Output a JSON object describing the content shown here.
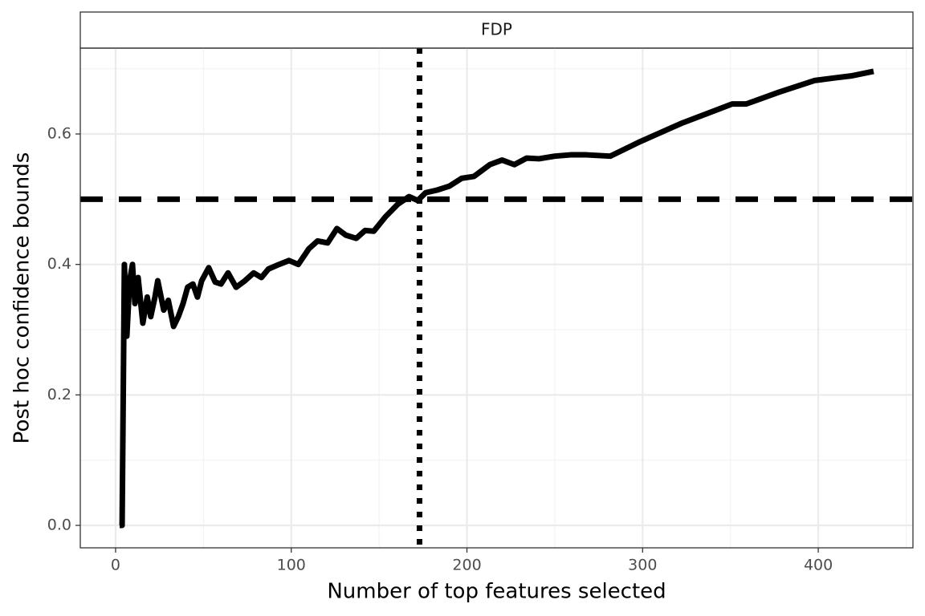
{
  "chart_data": {
    "type": "line",
    "facet_label": "FDP",
    "xlabel": "Number of top features selected",
    "ylabel": "Post hoc confidence bounds",
    "x": [
      2.3,
      3.7,
      5,
      6.4,
      8,
      9.6,
      11,
      12.8,
      15.5,
      18,
      20,
      22.4,
      24,
      27.4,
      30,
      33,
      35.7,
      38.4,
      41,
      44,
      46.6,
      49,
      53,
      56.7,
      60,
      64,
      68.6,
      73.6,
      78.6,
      83,
      87,
      93,
      98.7,
      104,
      110,
      115,
      120.7,
      126,
      131,
      137,
      142,
      147,
      153.6,
      160.5,
      167,
      172,
      176.5,
      183,
      190,
      197,
      204,
      213,
      220,
      227,
      234,
      241,
      250,
      259,
      268,
      281.6,
      297.6,
      322.7,
      351,
      359,
      377.6,
      398,
      409.6,
      418.7,
      431.5
    ],
    "series": [
      {
        "color": "#000000",
        "values": [
          0,
          0,
          0.4,
          0.29,
          0.375,
          0.4,
          0.34,
          0.38,
          0.31,
          0.35,
          0.32,
          0.35,
          0.375,
          0.33,
          0.345,
          0.305,
          0.32,
          0.34,
          0.365,
          0.37,
          0.35,
          0.375,
          0.395,
          0.373,
          0.37,
          0.387,
          0.365,
          0.375,
          0.387,
          0.38,
          0.393,
          0.4,
          0.406,
          0.4,
          0.424,
          0.436,
          0.433,
          0.455,
          0.445,
          0.44,
          0.452,
          0.451,
          0.473,
          0.492,
          0.504,
          0.498,
          0.51,
          0.514,
          0.52,
          0.532,
          0.535,
          0.553,
          0.56,
          0.553,
          0.563,
          0.562,
          0.566,
          0.568,
          0.568,
          0.566,
          0.587,
          0.617,
          0.646,
          0.646,
          0.664,
          0.682,
          0.686,
          0.689,
          0.696
        ]
      }
    ],
    "hlines": [
      {
        "value": 0.5,
        "linetype": "dashed"
      }
    ],
    "vlines": [
      {
        "value": 173,
        "linetype": "dotted"
      }
    ],
    "xlim": [
      -20.1,
      453.9
    ],
    "ylim": [
      -0.0344,
      0.7316
    ],
    "xticks": [
      0,
      100,
      200,
      300,
      400
    ],
    "yticks": [
      {
        "value": 0,
        "label": "0.0"
      },
      0.2,
      0.4,
      0.6
    ],
    "grid": true
  }
}
